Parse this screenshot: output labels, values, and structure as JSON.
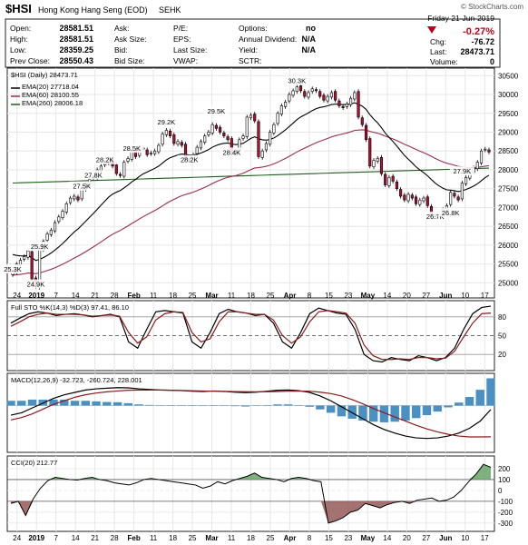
{
  "header": {
    "symbol": "$HSI",
    "name": "Hong Kong Hang Seng (EOD)",
    "exchange": "SEHK",
    "brand": "© StockCharts.com",
    "date_label": "Friday   21-Jun-2019",
    "change_pct": "-0.27%",
    "quote_rows": [
      [
        [
          "Open:",
          "28581.51"
        ],
        [
          "Ask:",
          ""
        ],
        [
          "P/E:",
          ""
        ],
        [
          "Options:",
          "no"
        ]
      ],
      [
        [
          "High:",
          "28581.51"
        ],
        [
          "Ask Size:",
          ""
        ],
        [
          "EPS:",
          ""
        ],
        [
          "Annual Dividend:",
          "N/A"
        ]
      ],
      [
        [
          "Low:",
          "28359.25"
        ],
        [
          "Bid:",
          ""
        ],
        [
          "Last Size:",
          ""
        ],
        [
          "Yield:",
          "N/A"
        ]
      ],
      [
        [
          "Prev Close:",
          "28550.43"
        ],
        [
          "Bid Size:",
          ""
        ],
        [
          "VWAP:",
          ""
        ],
        [
          "SCTR:",
          ""
        ]
      ]
    ],
    "right_rows": [
      [
        "Chg:",
        "-76.72"
      ],
      [
        "Last:",
        "28473.71"
      ],
      [
        "Volume:",
        "0"
      ]
    ]
  },
  "chart_data": [
    {
      "type": "candlestick",
      "legend": [
        {
          "text": "$HSI (Daily) 28473.71",
          "color": "#000000"
        },
        {
          "text": "EMA(20) 27718.04",
          "color": "#000000"
        },
        {
          "text": "EMA(60) 28100.55",
          "color": "#9b2d50"
        },
        {
          "text": "EMA(260) 28006.18",
          "color": "#1f5d1f"
        }
      ],
      "ylim": [
        24600,
        30700
      ],
      "y_ticks": [
        25000,
        25500,
        26000,
        26500,
        27000,
        27500,
        28000,
        28500,
        29000,
        29500,
        30000,
        30500
      ],
      "close_approx": [
        25300,
        25500,
        25600,
        25700,
        25850,
        25100,
        24900,
        25900,
        26100,
        26300,
        26400,
        26600,
        26750,
        26900,
        27100,
        27250,
        27300,
        27200,
        27500,
        27600,
        27750,
        27800,
        28000,
        28100,
        28200,
        28300,
        28100,
        27900,
        27850,
        28200,
        28300,
        28500,
        28350,
        28600,
        28550,
        28400,
        28450,
        28500,
        28650,
        28950,
        29050,
        28900,
        28700,
        28750,
        28650,
        28300,
        28250,
        28400,
        28600,
        28750,
        28900,
        29000,
        29200,
        29100,
        29000,
        28900,
        28800,
        28450,
        28500,
        28800,
        28900,
        29400,
        29450,
        29300,
        28350,
        28500,
        28700,
        29000,
        29200,
        29500,
        29700,
        29800,
        30000,
        30100,
        30200,
        30100,
        29950,
        30050,
        30150,
        30100,
        29950,
        29850,
        29950,
        30050,
        29850,
        29700,
        29650,
        29750,
        29900,
        30050,
        29400,
        29200,
        28800,
        28100,
        28250,
        28300,
        27900,
        27600,
        27800,
        27700,
        27500,
        27300,
        27200,
        27350,
        27250,
        27100,
        27200,
        27250,
        27050,
        26800,
        26750,
        26850,
        26950,
        27050,
        27400,
        27300,
        27200,
        27650,
        27800,
        27900,
        28050,
        28200,
        28500,
        28550,
        28474
      ],
      "annotations": [
        {
          "text": "25.3K",
          "idx": 0,
          "value": 25300
        },
        {
          "text": "25.9K",
          "idx": 7,
          "value": 25900
        },
        {
          "text": "24.9K",
          "idx": 6,
          "value": 24900
        },
        {
          "text": "27.5K",
          "idx": 18,
          "value": 27500
        },
        {
          "text": "28.2K",
          "idx": 24,
          "value": 28200
        },
        {
          "text": "27.8K",
          "idx": 21,
          "value": 27800
        },
        {
          "text": "28.5K",
          "idx": 31,
          "value": 28500
        },
        {
          "text": "29.2K",
          "idx": 40,
          "value": 29200
        },
        {
          "text": "28.2K",
          "idx": 46,
          "value": 28200
        },
        {
          "text": "29.5K",
          "idx": 53,
          "value": 29500
        },
        {
          "text": "28.4K",
          "idx": 57,
          "value": 28400
        },
        {
          "text": "30.3K",
          "idx": 74,
          "value": 30300
        },
        {
          "text": "27.9K",
          "idx": 117,
          "value": 27900
        },
        {
          "text": "26.7K",
          "idx": 110,
          "value": 26700
        },
        {
          "text": "26.8K",
          "idx": 114,
          "value": 26800
        }
      ]
    },
    {
      "type": "line",
      "legend": [
        {
          "text": "Full STO %K(14,3) %D(3) 97.41, 86.10",
          "color": "#000000"
        }
      ],
      "ylim": [
        0,
        100
      ],
      "y_ticks": [
        20,
        50,
        80
      ],
      "series": [
        {
          "name": "%K",
          "color": "#000000",
          "values": [
            70,
            78,
            85,
            88,
            86,
            82,
            84,
            85,
            83,
            80,
            82,
            84,
            80,
            40,
            30,
            60,
            88,
            90,
            88,
            86,
            40,
            30,
            55,
            85,
            92,
            88,
            86,
            82,
            84,
            70,
            40,
            30,
            55,
            85,
            94,
            90,
            86,
            84,
            60,
            20,
            10,
            8,
            15,
            12,
            10,
            18,
            15,
            10,
            15,
            30,
            60,
            85,
            95,
            97
          ]
        },
        {
          "name": "%D",
          "color": "#8b1a1a",
          "values": [
            65,
            72,
            80,
            84,
            86,
            84,
            84,
            84,
            83,
            81,
            82,
            83,
            81,
            55,
            38,
            48,
            75,
            85,
            88,
            87,
            55,
            40,
            45,
            72,
            88,
            88,
            86,
            84,
            84,
            75,
            50,
            38,
            48,
            72,
            88,
            90,
            88,
            86,
            70,
            35,
            18,
            12,
            12,
            13,
            12,
            15,
            15,
            13,
            14,
            25,
            48,
            70,
            85,
            86
          ]
        }
      ]
    },
    {
      "type": "line",
      "legend": [
        {
          "text": "MACD(12,26,9) -32.723, -260.724, 228.001",
          "color": "#000000"
        }
      ],
      "series": [
        {
          "name": "MACD",
          "color": "#000000",
          "values": [
            -80,
            -60,
            -20,
            20,
            60,
            90,
            110,
            130,
            140,
            145,
            150,
            148,
            140,
            135,
            130,
            128,
            125,
            120,
            118,
            122,
            118,
            112,
            108,
            112,
            120,
            128,
            130,
            125,
            110,
            80,
            40,
            -10,
            -60,
            -110,
            -160,
            -200,
            -230,
            -255,
            -270,
            -275,
            -270,
            -255,
            -230,
            -190,
            -130,
            -33
          ]
        },
        {
          "name": "Signal",
          "color": "#8b1a1a",
          "values": [
            -120,
            -100,
            -70,
            -30,
            10,
            40,
            70,
            90,
            105,
            115,
            122,
            128,
            130,
            130,
            130,
            128,
            126,
            124,
            122,
            120,
            119,
            117,
            116,
            115,
            116,
            118,
            120,
            121,
            120,
            112,
            100,
            80,
            50,
            15,
            -25,
            -60,
            -95,
            -130,
            -165,
            -195,
            -220,
            -240,
            -255,
            -262,
            -262,
            -261
          ]
        }
      ]
    },
    {
      "type": "area",
      "legend": [
        {
          "text": "CCI(20) 212.77",
          "color": "#000000"
        }
      ],
      "ylim": [
        -360,
        300
      ],
      "y_ticks": [
        -300,
        -200,
        -100,
        0,
        100,
        200
      ],
      "values": [
        -120,
        -100,
        -230,
        -80,
        20,
        90,
        120,
        110,
        100,
        95,
        110,
        120,
        100,
        90,
        70,
        60,
        50,
        70,
        100,
        110,
        100,
        90,
        80,
        70,
        60,
        50,
        20,
        40,
        80,
        60,
        90,
        110,
        130,
        160,
        120,
        110,
        100,
        80,
        110,
        120,
        110,
        90,
        80,
        -300,
        -280,
        -250,
        -200,
        -180,
        -120,
        -140,
        -160,
        -130,
        -110,
        -100,
        -120,
        -90,
        -80,
        -70,
        -100,
        -90,
        -60,
        0,
        80,
        150,
        240,
        213
      ]
    }
  ],
  "x_axis": {
    "labels": [
      "24",
      "2019",
      "7",
      "14",
      "21",
      "28",
      "Feb",
      "11",
      "18",
      "25",
      "Mar",
      "11",
      "18",
      "25",
      "Apr",
      "8",
      "15",
      "23",
      "May",
      "14",
      "20",
      "27",
      "Jun",
      "10",
      "17"
    ]
  },
  "colors": {
    "up": "#ffffff",
    "down": "#b01030",
    "ema20": "#000000",
    "ema60": "#9b2d50",
    "ema260": "#1f5d1f",
    "macd_hist": "#4a90c2",
    "cci_fill": "#5f9e5f",
    "cci_neg_fill": "#8e4f4f",
    "red_text": "#c0001a"
  }
}
